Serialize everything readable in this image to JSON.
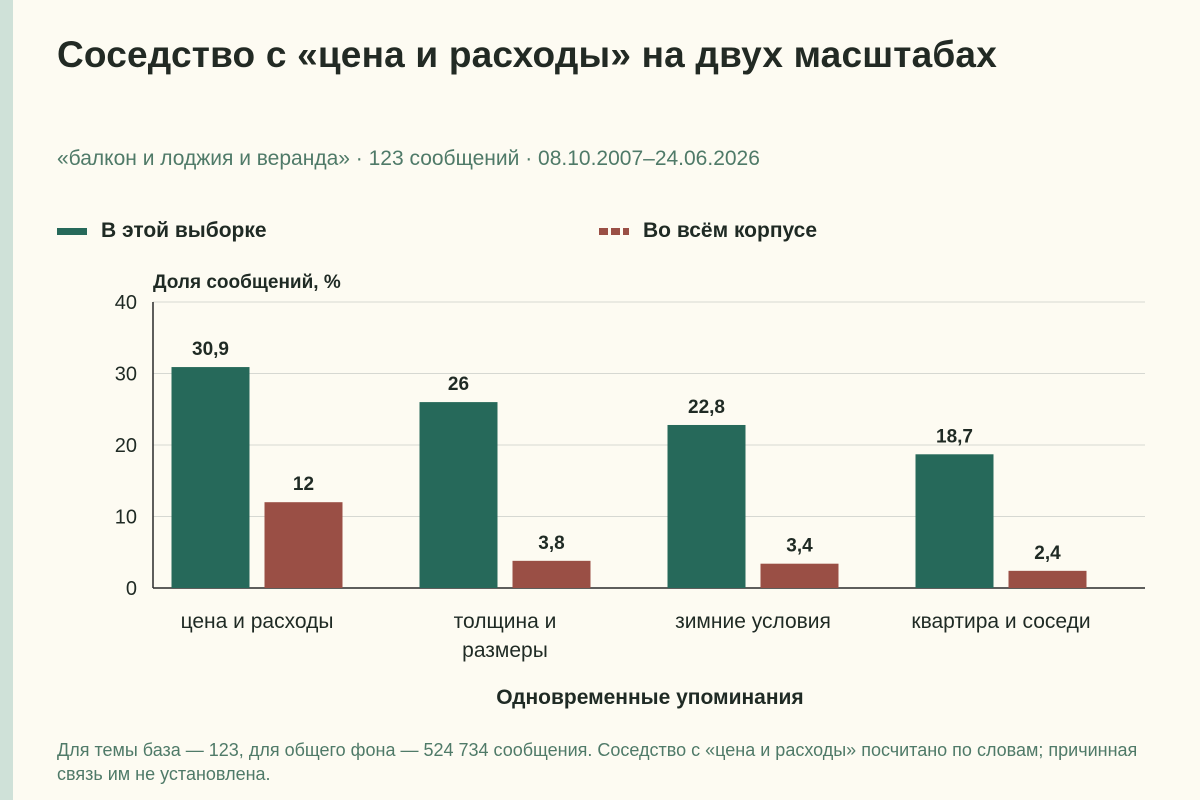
{
  "title": "Соседство с «цена и расходы» на двух масштабах",
  "subtitle": "«балкон и лоджия и веранда» · 123 сообщений · 08.10.2007–24.06.2026",
  "legend": {
    "series1": "В этой выборке",
    "series2": "Во всём корпусе"
  },
  "footnote": "Для темы база — 123, для общего фона — 524 734 сообщения. Соседство с «цена и расходы» посчитано по словам; причинная связь им не установлена.",
  "colors": {
    "series1": "#26695a",
    "series2": "#9a4f45",
    "grid": "#d6d8d2",
    "accent_bar": "#cfe1d8"
  },
  "chart_data": {
    "type": "bar",
    "title": "Соседство с «цена и расходы» на двух масштабах",
    "xlabel": "Одновременные упоминания",
    "ylabel": "Доля сообщений, %",
    "ylim": [
      0,
      40
    ],
    "yticks": [
      "0",
      "10",
      "20",
      "30",
      "40"
    ],
    "categories": [
      [
        "цена и расходы"
      ],
      [
        "толщина и",
        "размеры"
      ],
      [
        "зимние условия"
      ],
      [
        "квартира и соседи"
      ]
    ],
    "series": [
      {
        "name": "В этой выборке",
        "values": [
          30.9,
          26,
          22.8,
          18.7
        ],
        "labels": [
          "30,9",
          "26",
          "22,8",
          "18,7"
        ]
      },
      {
        "name": "Во всём корпусе",
        "values": [
          12,
          3.8,
          3.4,
          2.4
        ],
        "labels": [
          "12",
          "3,8",
          "3,4",
          "2,4"
        ]
      }
    ],
    "grid": true,
    "legend_position": "top"
  }
}
